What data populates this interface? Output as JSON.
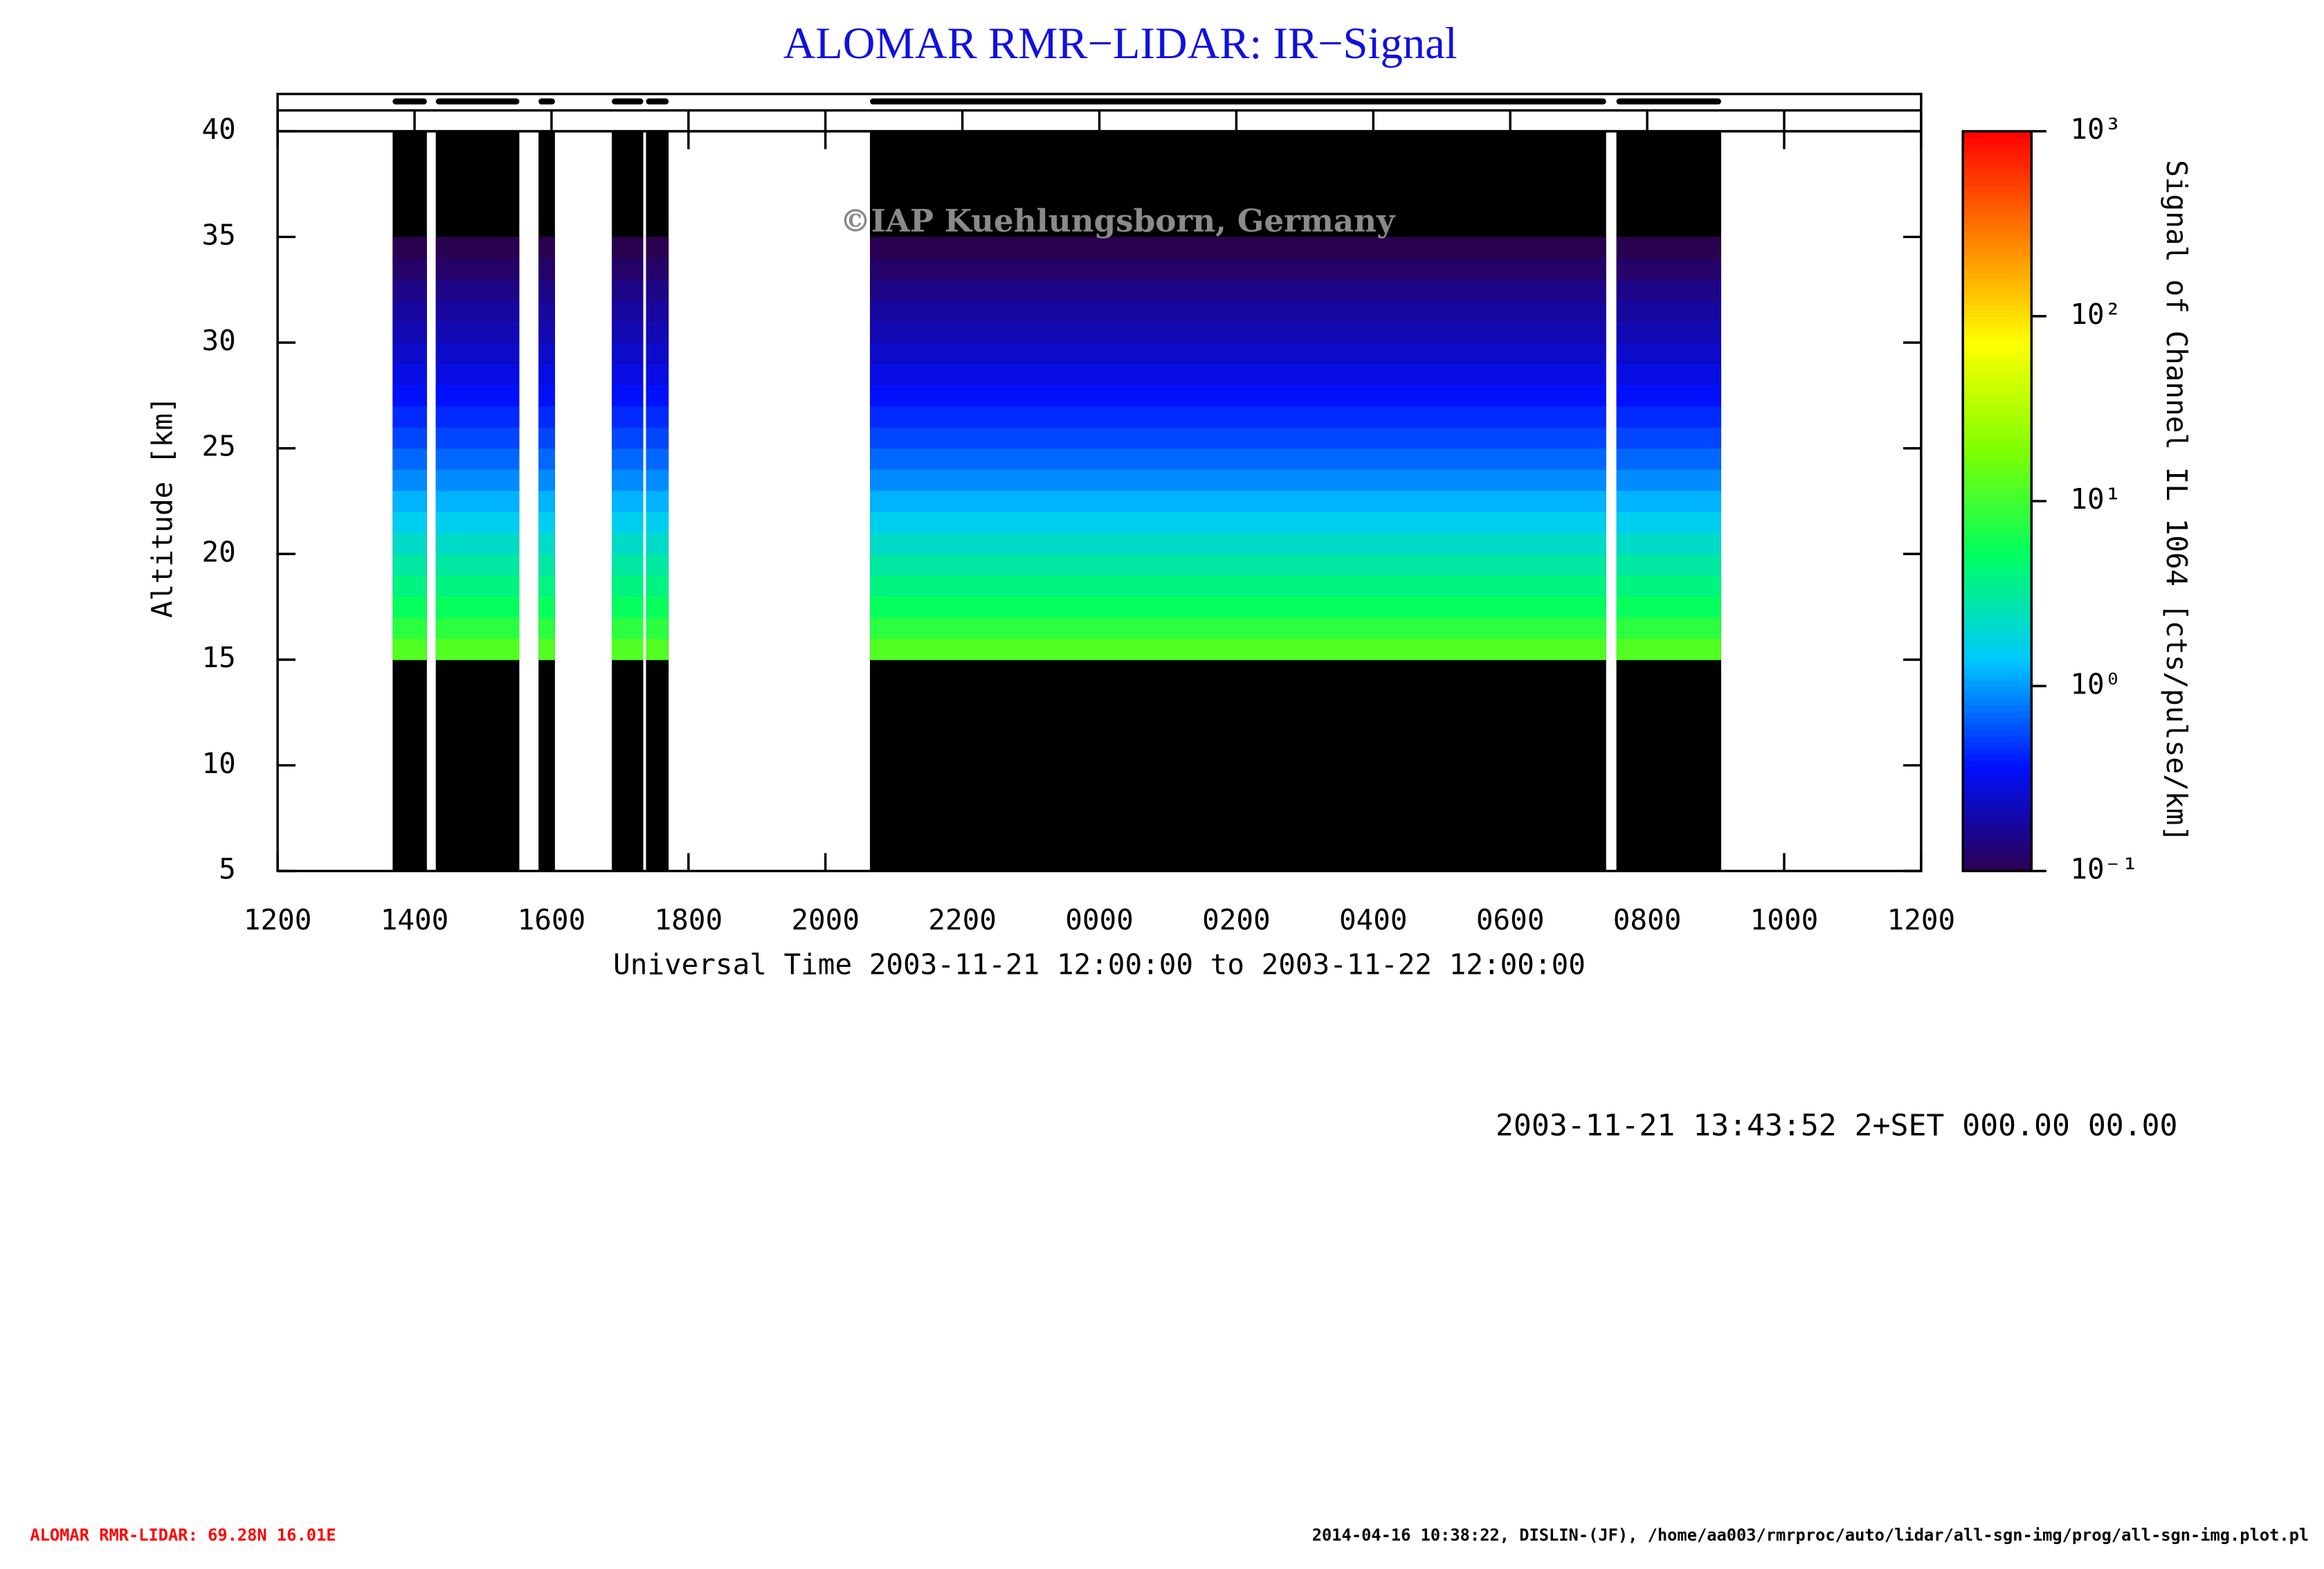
{
  "chart_data": {
    "type": "heatmap",
    "title": "ALOMAR RMR−LIDAR: IR−Signal",
    "watermark": "©IAP Kuehlungsborn, Germany",
    "xlabel": "Universal Time 2003-11-21 12:00:00 to 2003-11-22 12:00:00",
    "ylabel": "Altitude [km]",
    "colorbar_label": "Signal of Channel IL 1064 [cts/pulse/km]",
    "xlim": [
      12,
      36
    ],
    "xticks": [
      {
        "value": 12,
        "label": "1200"
      },
      {
        "value": 14,
        "label": "1400"
      },
      {
        "value": 16,
        "label": "1600"
      },
      {
        "value": 18,
        "label": "1800"
      },
      {
        "value": 20,
        "label": "2000"
      },
      {
        "value": 22,
        "label": "2200"
      },
      {
        "value": 24,
        "label": "0000"
      },
      {
        "value": 26,
        "label": "0200"
      },
      {
        "value": 28,
        "label": "0400"
      },
      {
        "value": 30,
        "label": "0600"
      },
      {
        "value": 32,
        "label": "0800"
      },
      {
        "value": 34,
        "label": "1000"
      },
      {
        "value": 36,
        "label": "1200"
      }
    ],
    "ylim": [
      5,
      40
    ],
    "yticks": [
      5,
      10,
      15,
      20,
      25,
      30,
      35,
      40
    ],
    "clim": [
      0.1,
      1000
    ],
    "clog": true,
    "cticks": [
      {
        "value": 0.1,
        "label": "10⁻¹"
      },
      {
        "value": 1,
        "label": "10⁰"
      },
      {
        "value": 10,
        "label": "10¹"
      },
      {
        "value": 100,
        "label": "10²"
      },
      {
        "value": 1000,
        "label": "10³"
      }
    ],
    "colormap": [
      "#2a0050",
      "#0010ff",
      "#00c8ff",
      "#00ff60",
      "#80ff00",
      "#ffff00",
      "#ff8000",
      "#ff0000"
    ],
    "periods": {
      "start": [
        13.68,
        14.31,
        15.81,
        16.88,
        17.38,
        20.65,
        31.55
      ],
      "end": [
        14.18,
        15.53,
        16.05,
        17.34,
        17.71,
        31.4,
        33.08
      ]
    },
    "profile": {
      "altitude": [
        15,
        16,
        17,
        18,
        19,
        20,
        21,
        22,
        23,
        24,
        25,
        26,
        27,
        28,
        29,
        30,
        31,
        32,
        33,
        34
      ],
      "values": [
        12,
        8,
        5.5,
        4,
        3,
        2.2,
        1.6,
        1.2,
        0.9,
        0.7,
        0.55,
        0.45,
        0.36,
        0.3,
        0.25,
        0.21,
        0.18,
        0.15,
        0.12,
        0.1
      ]
    },
    "stamp": "2003-11-21 13:43:52 2+SET 000.00 00.00",
    "footer_left": "ALOMAR RMR-LIDAR: 69.28N 16.01E",
    "footer_right": "2014-04-16 10:38:22, DISLIN-(JF), /home/aa003/rmrproc/auto/lidar/all-sgn-img/prog/all-sgn-img.plot.pl"
  }
}
